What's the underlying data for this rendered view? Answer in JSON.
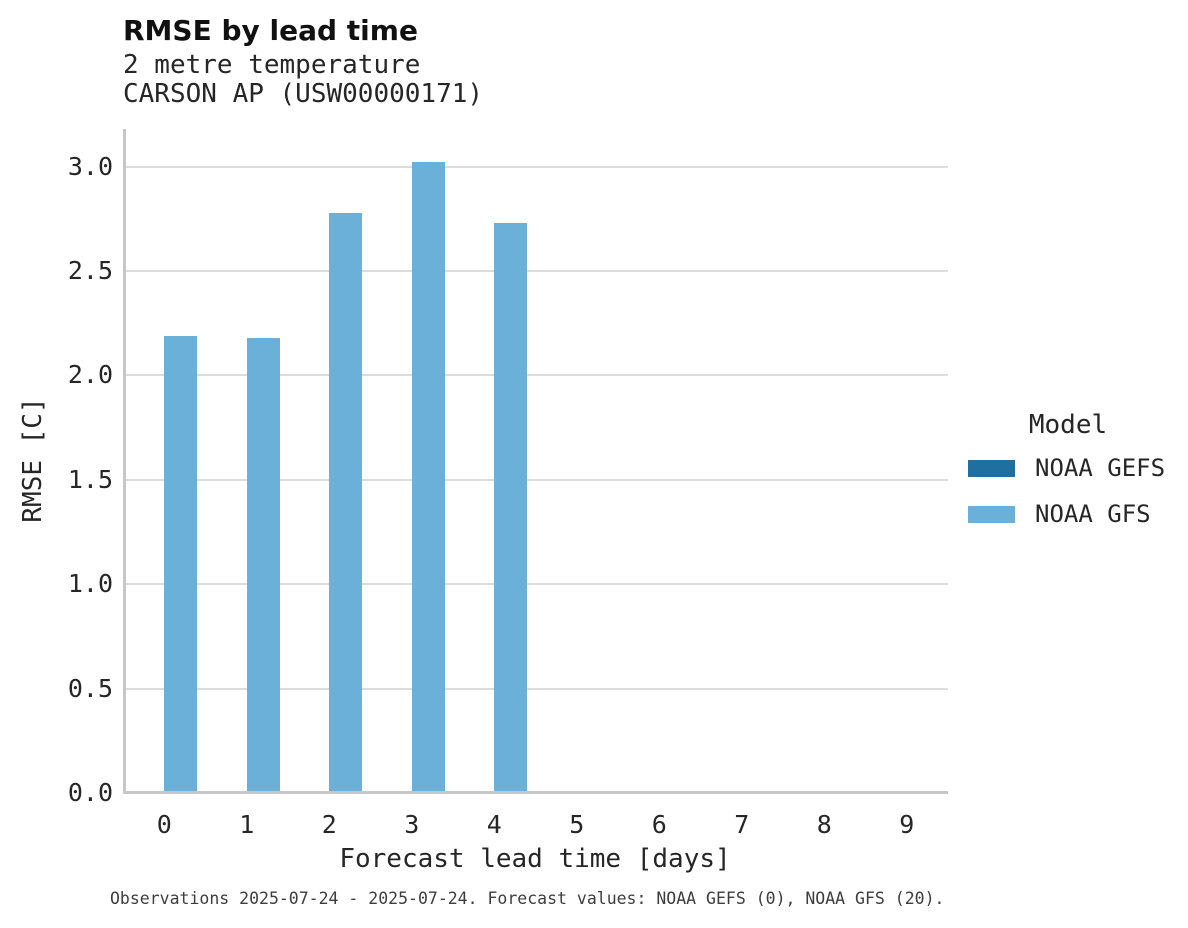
{
  "header": {
    "title": "RMSE by lead time",
    "subtitle1": "2 metre temperature",
    "subtitle2": "CARSON AP (USW00000171)"
  },
  "footer": {
    "text": "Observations 2025-07-24 - 2025-07-24. Forecast values: NOAA GEFS (0), NOAA GFS (20)."
  },
  "legend": {
    "title": "Model",
    "entries": [
      {
        "label": "NOAA GEFS",
        "color": "#20709f"
      },
      {
        "label": "NOAA GFS",
        "color": "#6bb0d8"
      }
    ]
  },
  "colors": {
    "gefs_bar": "#20709f",
    "gfs_bar": "#6bb0d8",
    "gridline": "#dcdcdc",
    "spine": "#c7c7c7",
    "text": "#262626",
    "footer_text": "#3d3d3d"
  },
  "chart_data": {
    "type": "bar",
    "title": "RMSE by lead time",
    "subtitle": [
      "2 metre temperature",
      "CARSON AP (USW00000171)"
    ],
    "categories": [
      "0",
      "1",
      "2",
      "3",
      "4",
      "5",
      "6",
      "7",
      "8",
      "9"
    ],
    "series": [
      {
        "name": "NOAA GEFS",
        "color": "#20709f",
        "values": [
          null,
          null,
          null,
          null,
          null,
          null,
          null,
          null,
          null,
          null
        ]
      },
      {
        "name": "NOAA GFS",
        "color": "#6bb0d8",
        "values": [
          2.19,
          2.18,
          2.78,
          3.02,
          2.73,
          null,
          null,
          null,
          null,
          null
        ]
      }
    ],
    "xlabel": "Forecast lead time [days]",
    "ylabel": "RMSE [C]",
    "ylim": [
      0,
      3.18
    ],
    "yticks": [
      0.0,
      0.5,
      1.0,
      1.5,
      2.0,
      2.5,
      3.0
    ],
    "grid": true,
    "legend_title": "Model",
    "legend_position": "right"
  }
}
